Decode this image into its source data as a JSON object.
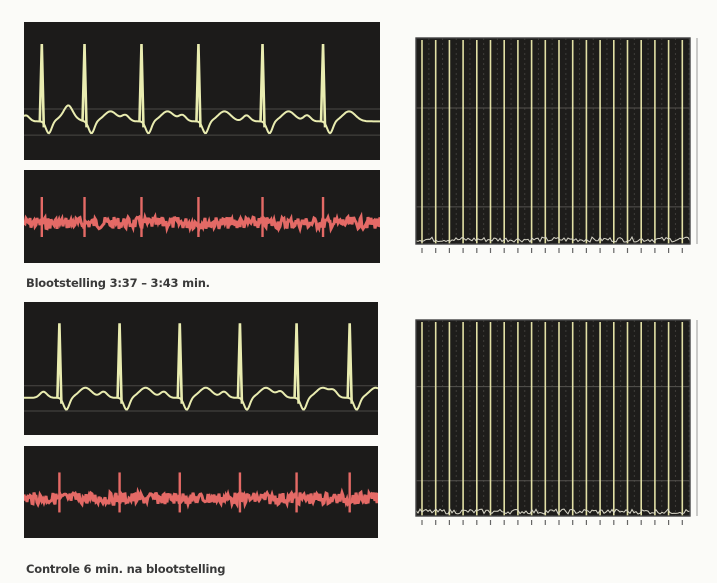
{
  "captions": {
    "exposure": "Blootstelling 3:37 – 3:43 min.",
    "control": "Controle 6 min. na blootstelling"
  },
  "colors": {
    "ecg": "#e9ecb0",
    "emg": "#e46a66",
    "spectrum_line": "#e2e0a5",
    "panel_bg": "#1c1b1a"
  },
  "chart_data": [
    {
      "type": "line",
      "title": "",
      "xlabel": "",
      "ylabel": "",
      "series": [
        {
          "name": "",
          "r_peak_times": [
            0.05,
            0.17,
            0.33,
            0.49,
            0.67,
            0.84
          ]
        }
      ],
      "grid": true
    },
    {
      "type": "line",
      "title": "",
      "xlabel": "",
      "ylabel": "",
      "series": [
        {
          "name": "",
          "spike_times": [
            0.05,
            0.17,
            0.33,
            0.49,
            0.67,
            0.84
          ]
        }
      ],
      "grid": false
    },
    {
      "type": "bar",
      "title": "",
      "xlabel": "",
      "ylabel": "",
      "x": [
        1,
        2,
        3,
        4,
        5,
        6,
        7,
        8,
        9,
        10,
        11,
        12,
        13,
        14,
        15,
        16,
        17,
        18,
        19,
        20
      ],
      "values": [
        1.0,
        1.0,
        1.0,
        1.0,
        1.0,
        1.0,
        1.0,
        1.0,
        1.0,
        1.0,
        1.0,
        1.0,
        1.0,
        1.0,
        1.0,
        1.0,
        1.0,
        1.0,
        1.0,
        1.0
      ],
      "grid": true
    },
    {
      "type": "line",
      "title": "",
      "xlabel": "",
      "ylabel": "",
      "series": [
        {
          "name": "",
          "r_peak_times": [
            0.1,
            0.27,
            0.44,
            0.61,
            0.77,
            0.92
          ]
        }
      ],
      "grid": true
    },
    {
      "type": "line",
      "title": "",
      "xlabel": "",
      "ylabel": "",
      "series": [
        {
          "name": "",
          "spike_times": [
            0.1,
            0.27,
            0.44,
            0.61,
            0.77,
            0.92
          ]
        }
      ],
      "grid": false
    },
    {
      "type": "bar",
      "title": "",
      "xlabel": "",
      "ylabel": "",
      "x": [
        1,
        2,
        3,
        4,
        5,
        6,
        7,
        8,
        9,
        10,
        11,
        12,
        13,
        14,
        15,
        16,
        17,
        18,
        19,
        20
      ],
      "values": [
        1.0,
        1.0,
        1.0,
        1.0,
        1.0,
        1.0,
        1.0,
        1.0,
        1.0,
        1.0,
        1.0,
        1.0,
        1.0,
        1.0,
        1.0,
        1.0,
        1.0,
        1.0,
        1.0,
        1.0
      ],
      "grid": true
    }
  ]
}
